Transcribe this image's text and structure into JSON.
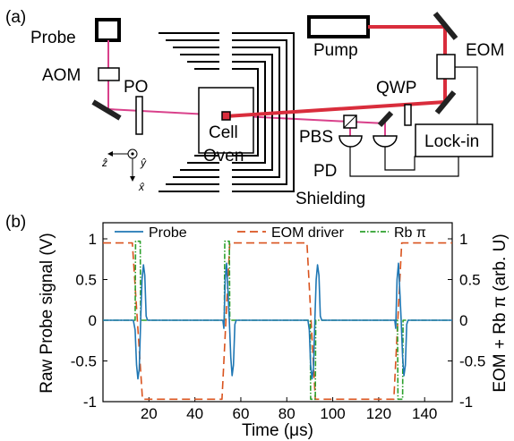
{
  "panel_a": {
    "panel_label": "(a)",
    "labels": {
      "probe": "Probe",
      "aom": "AOM",
      "po": "PO",
      "pump": "Pump",
      "eom": "EOM",
      "qwp": "QWP",
      "pbs": "PBS",
      "pd": "PD",
      "lockin": "Lock-in",
      "cell": "Cell",
      "oven": "Oven",
      "shielding": "Shielding",
      "axis_z": "ẑ",
      "axis_y": "ŷ",
      "axis_x": "x̂"
    },
    "colors": {
      "probe_beam": "#d9418b",
      "pump_beam": "#d92d3c"
    }
  },
  "panel_b": {
    "panel_label": "(b)"
  },
  "chart_data": {
    "type": "line",
    "xlabel": "Time (μs)",
    "ylabel": "Raw Probe signal (V)",
    "y2label": "EOM + Rb π (arb. U)",
    "xlim": [
      0,
      152
    ],
    "ylim": [
      -1,
      1.05
    ],
    "x_ticks": [
      20,
      40,
      60,
      80,
      100,
      120,
      140
    ],
    "y_ticks": [
      -1,
      -0.5,
      0,
      0.5,
      1
    ],
    "y2_ticks": [
      -1,
      -0.5,
      0,
      0.5,
      1
    ],
    "legend_position": "top",
    "grid": false,
    "series": [
      {
        "name": "Probe",
        "color": "#1f77b4",
        "style": "solid",
        "points": [
          [
            0,
            0
          ],
          [
            13.2,
            0
          ],
          [
            14,
            -0.12
          ],
          [
            14.6,
            -0.55
          ],
          [
            15.2,
            -0.72
          ],
          [
            15.8,
            -0.6
          ],
          [
            16.4,
            0
          ],
          [
            17,
            0.5
          ],
          [
            17.6,
            0.68
          ],
          [
            18.2,
            0.55
          ],
          [
            18.8,
            0.05
          ],
          [
            19.4,
            0
          ],
          [
            52.2,
            0
          ],
          [
            52.6,
            -0.1
          ],
          [
            53.2,
            0.5
          ],
          [
            53.8,
            0.7
          ],
          [
            54.4,
            0.35
          ],
          [
            55,
            0
          ],
          [
            55.6,
            -0.45
          ],
          [
            56.2,
            -0.68
          ],
          [
            56.8,
            -0.55
          ],
          [
            57.4,
            -0.05
          ],
          [
            58,
            0
          ],
          [
            89.2,
            0
          ],
          [
            89.8,
            -0.12
          ],
          [
            90.4,
            -0.55
          ],
          [
            91,
            -0.72
          ],
          [
            91.6,
            -0.6
          ],
          [
            92.2,
            0
          ],
          [
            92.8,
            0.5
          ],
          [
            93.4,
            0.68
          ],
          [
            94,
            0.55
          ],
          [
            94.6,
            0.05
          ],
          [
            95.2,
            0
          ],
          [
            127,
            0
          ],
          [
            127.4,
            -0.1
          ],
          [
            128,
            0.5
          ],
          [
            128.6,
            0.7
          ],
          [
            129.2,
            0.35
          ],
          [
            129.8,
            0
          ],
          [
            130.4,
            -0.45
          ],
          [
            131,
            -0.68
          ],
          [
            131.6,
            -0.55
          ],
          [
            132.2,
            -0.05
          ],
          [
            132.8,
            0
          ],
          [
            152,
            0
          ]
        ]
      },
      {
        "name": "EOM driver",
        "color": "#d9531e",
        "style": "dashed",
        "points": [
          [
            0,
            0.95
          ],
          [
            12.8,
            0.95
          ],
          [
            17.2,
            -0.97
          ],
          [
            51.8,
            -0.97
          ],
          [
            55.2,
            0.95
          ],
          [
            88.8,
            0.95
          ],
          [
            92.4,
            -0.97
          ],
          [
            126.6,
            -0.97
          ],
          [
            130,
            0.95
          ],
          [
            152,
            0.95
          ]
        ]
      },
      {
        "name": "Rb π",
        "color": "#2ca02c",
        "style": "dashdot",
        "points": [
          [
            0,
            0
          ],
          [
            14,
            0
          ],
          [
            14.2,
            0.97
          ],
          [
            16.2,
            0.97
          ],
          [
            16.4,
            0
          ],
          [
            52.8,
            0
          ],
          [
            53,
            0.97
          ],
          [
            55,
            0.97
          ],
          [
            55.2,
            0
          ],
          [
            90.2,
            0
          ],
          [
            90.4,
            -0.97
          ],
          [
            92.4,
            -0.97
          ],
          [
            92.6,
            0
          ],
          [
            128.2,
            0
          ],
          [
            128.4,
            -0.97
          ],
          [
            130.4,
            -0.97
          ],
          [
            130.6,
            0
          ],
          [
            152,
            0
          ]
        ]
      }
    ]
  }
}
